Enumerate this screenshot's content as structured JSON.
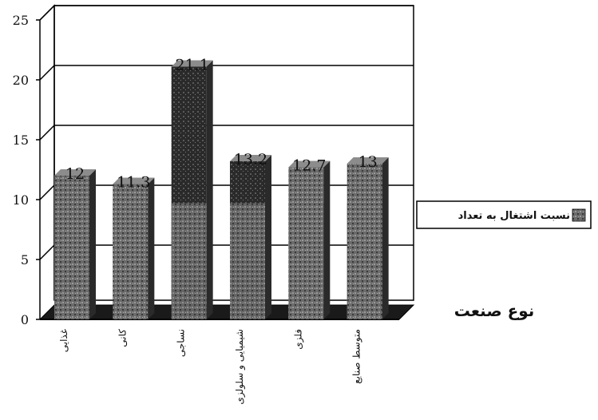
{
  "chart_data": {
    "type": "bar",
    "categories": [
      "غذایی",
      "کانی",
      "نساجی",
      "شیمیایی و سلولزی",
      "فلزی",
      "متوسط صنایع"
    ],
    "series": [
      {
        "name": "نسبت اشتغال به تعداد",
        "values": [
          12,
          11.3,
          21.1,
          13.2,
          12.7,
          13
        ]
      }
    ],
    "data_labels": [
      "12",
      "11.3",
      "21.1",
      "13.2",
      "12.7",
      "13"
    ],
    "xlabel": "نوع صنعت",
    "ylabel": "",
    "ylim": [
      0,
      25
    ],
    "yticks": [
      "0",
      "5",
      "10",
      "15",
      "20",
      "25"
    ],
    "grid": true,
    "legend_position": "right",
    "colors": {
      "bar": "#6f6f6f",
      "bar_dark": "#2e2e2e",
      "floor": "#1a1a1a",
      "grid": "#000000"
    }
  }
}
